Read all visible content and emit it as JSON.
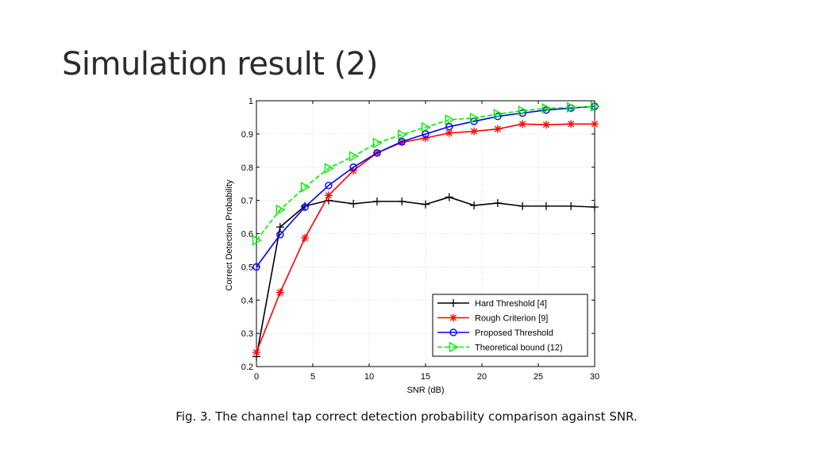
{
  "slide": {
    "title": "Simulation result (2)",
    "caption": "Fig. 3. The channel tap correct detection probability comparison against SNR."
  },
  "chart_data": {
    "type": "line",
    "title": "",
    "xlabel": "SNR (dB)",
    "ylabel": "Correct Detection Probability",
    "xlim": [
      0,
      30
    ],
    "ylim": [
      0.2,
      1
    ],
    "xticks": [
      0,
      5,
      10,
      15,
      20,
      25,
      30
    ],
    "yticks": [
      0.2,
      0.3,
      0.4,
      0.5,
      0.6,
      0.7,
      0.8,
      0.9,
      1
    ],
    "grid": "dotted",
    "legend_position": "bottom-right",
    "series": [
      {
        "name": "Hard Threshold [4]",
        "color": "#000000",
        "dash": "solid",
        "marker": "plus",
        "x": [
          0,
          2.1,
          4.3,
          6.4,
          8.6,
          10.7,
          12.9,
          15,
          17.1,
          19.3,
          21.4,
          23.6,
          25.7,
          27.9,
          30
        ],
        "values": [
          0.23,
          0.62,
          0.683,
          0.7,
          0.69,
          0.697,
          0.697,
          0.688,
          0.71,
          0.685,
          0.692,
          0.683,
          0.683,
          0.683,
          0.68
        ]
      },
      {
        "name": "Rough Criterion [9]",
        "color": "#ff0000",
        "dash": "solid",
        "marker": "star",
        "x": [
          0,
          2.1,
          4.3,
          6.4,
          8.6,
          10.7,
          12.9,
          15,
          17.1,
          19.3,
          21.4,
          23.6,
          25.7,
          27.9,
          30
        ],
        "values": [
          0.243,
          0.423,
          0.587,
          0.715,
          0.79,
          0.843,
          0.875,
          0.888,
          0.903,
          0.908,
          0.915,
          0.93,
          0.928,
          0.93,
          0.93
        ]
      },
      {
        "name": "Proposed Threshold",
        "color": "#0000ff",
        "dash": "solid",
        "marker": "circle",
        "x": [
          0,
          2.1,
          4.3,
          6.4,
          8.6,
          10.7,
          12.9,
          15,
          17.1,
          19.3,
          21.4,
          23.6,
          25.7,
          27.9,
          30
        ],
        "values": [
          0.5,
          0.597,
          0.68,
          0.745,
          0.8,
          0.843,
          0.877,
          0.9,
          0.922,
          0.938,
          0.953,
          0.963,
          0.972,
          0.978,
          0.983
        ]
      },
      {
        "name": "Theoretical bound (12)",
        "color": "#00ee00",
        "dash": "dashed",
        "marker": "triangle-right",
        "x": [
          0,
          2.1,
          4.3,
          6.4,
          8.6,
          10.7,
          12.9,
          15,
          17.1,
          19.3,
          21.4,
          23.6,
          25.7,
          27.9,
          30
        ],
        "values": [
          0.58,
          0.672,
          0.74,
          0.797,
          0.833,
          0.873,
          0.898,
          0.92,
          0.943,
          0.948,
          0.96,
          0.97,
          0.977,
          0.98,
          0.983
        ]
      }
    ]
  }
}
